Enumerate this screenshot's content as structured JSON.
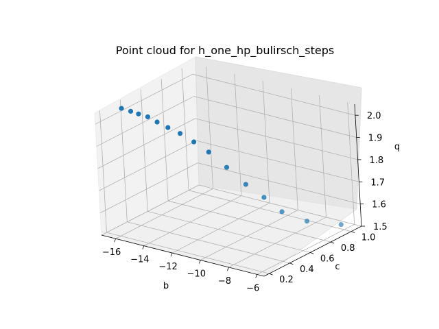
{
  "chart_data": {
    "type": "scatter",
    "title": "Point cloud for h_one_hp_bulirsch_steps",
    "xlabel": "b",
    "ylabel": "c",
    "zlabel": "q",
    "projection": "3d",
    "xlim": [
      -17,
      -5.5
    ],
    "ylim": [
      0.15,
      1.1
    ],
    "zlim": [
      1.5,
      2.05
    ],
    "xticks": [
      "−16",
      "−14",
      "−12",
      "−10",
      "−8",
      "−6"
    ],
    "yticks": [
      "0.2",
      "0.4",
      "0.6",
      "0.8",
      "1.0"
    ],
    "zticks": [
      "1.5",
      "1.6",
      "1.7",
      "1.8",
      "1.9",
      "2.0"
    ],
    "grid": true,
    "marker_color": "#1f77b4",
    "series": [
      {
        "x": [
          -16.8,
          -16.3,
          -15.9,
          -15.4,
          -14.9,
          -14.3,
          -13.6,
          -12.8,
          -12.0,
          -11.0,
          -10.0,
          -9.2,
          -8.5,
          -7.5,
          -6.2
        ],
        "y": [
          0.38,
          0.4,
          0.42,
          0.44,
          0.46,
          0.48,
          0.5,
          0.52,
          0.55,
          0.58,
          0.62,
          0.68,
          0.75,
          0.85,
          1.0
        ],
        "z": [
          2.02,
          2.01,
          2.0,
          1.99,
          1.97,
          1.95,
          1.93,
          1.9,
          1.86,
          1.8,
          1.73,
          1.67,
          1.6,
          1.55,
          1.52
        ]
      }
    ]
  }
}
